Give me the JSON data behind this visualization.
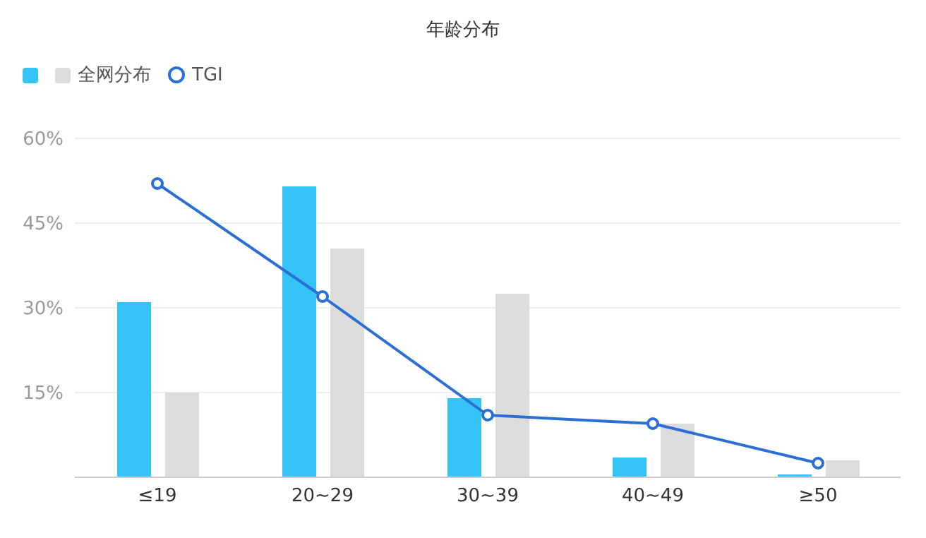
{
  "chart_data": {
    "type": "bar",
    "title": "年龄分布",
    "categories": [
      "≤19",
      "20~29",
      "30~39",
      "40~49",
      "≥50"
    ],
    "series": [
      {
        "color": "#33c3f5",
        "values": [
          31,
          51.5,
          14,
          3.5,
          0.5
        ]
      },
      {
        "name": "全网分布",
        "color": "#dcdcdc",
        "values": [
          15,
          40.5,
          32.5,
          9.5,
          3
        ]
      },
      {
        "name": "TGI",
        "type": "line",
        "color": "#2b6fd6",
        "values": [
          52,
          32,
          11,
          9.5,
          2.5
        ]
      }
    ],
    "ylim": [
      0,
      60
    ],
    "yticks": [
      {
        "value": 0,
        "label": null
      },
      {
        "value": 15,
        "label": "15%"
      },
      {
        "value": 30,
        "label": "30%"
      },
      {
        "value": 45,
        "label": "45%"
      },
      {
        "value": 60,
        "label": "60%"
      }
    ],
    "grid": "y",
    "legend": "top left",
    "marker": "circle"
  }
}
